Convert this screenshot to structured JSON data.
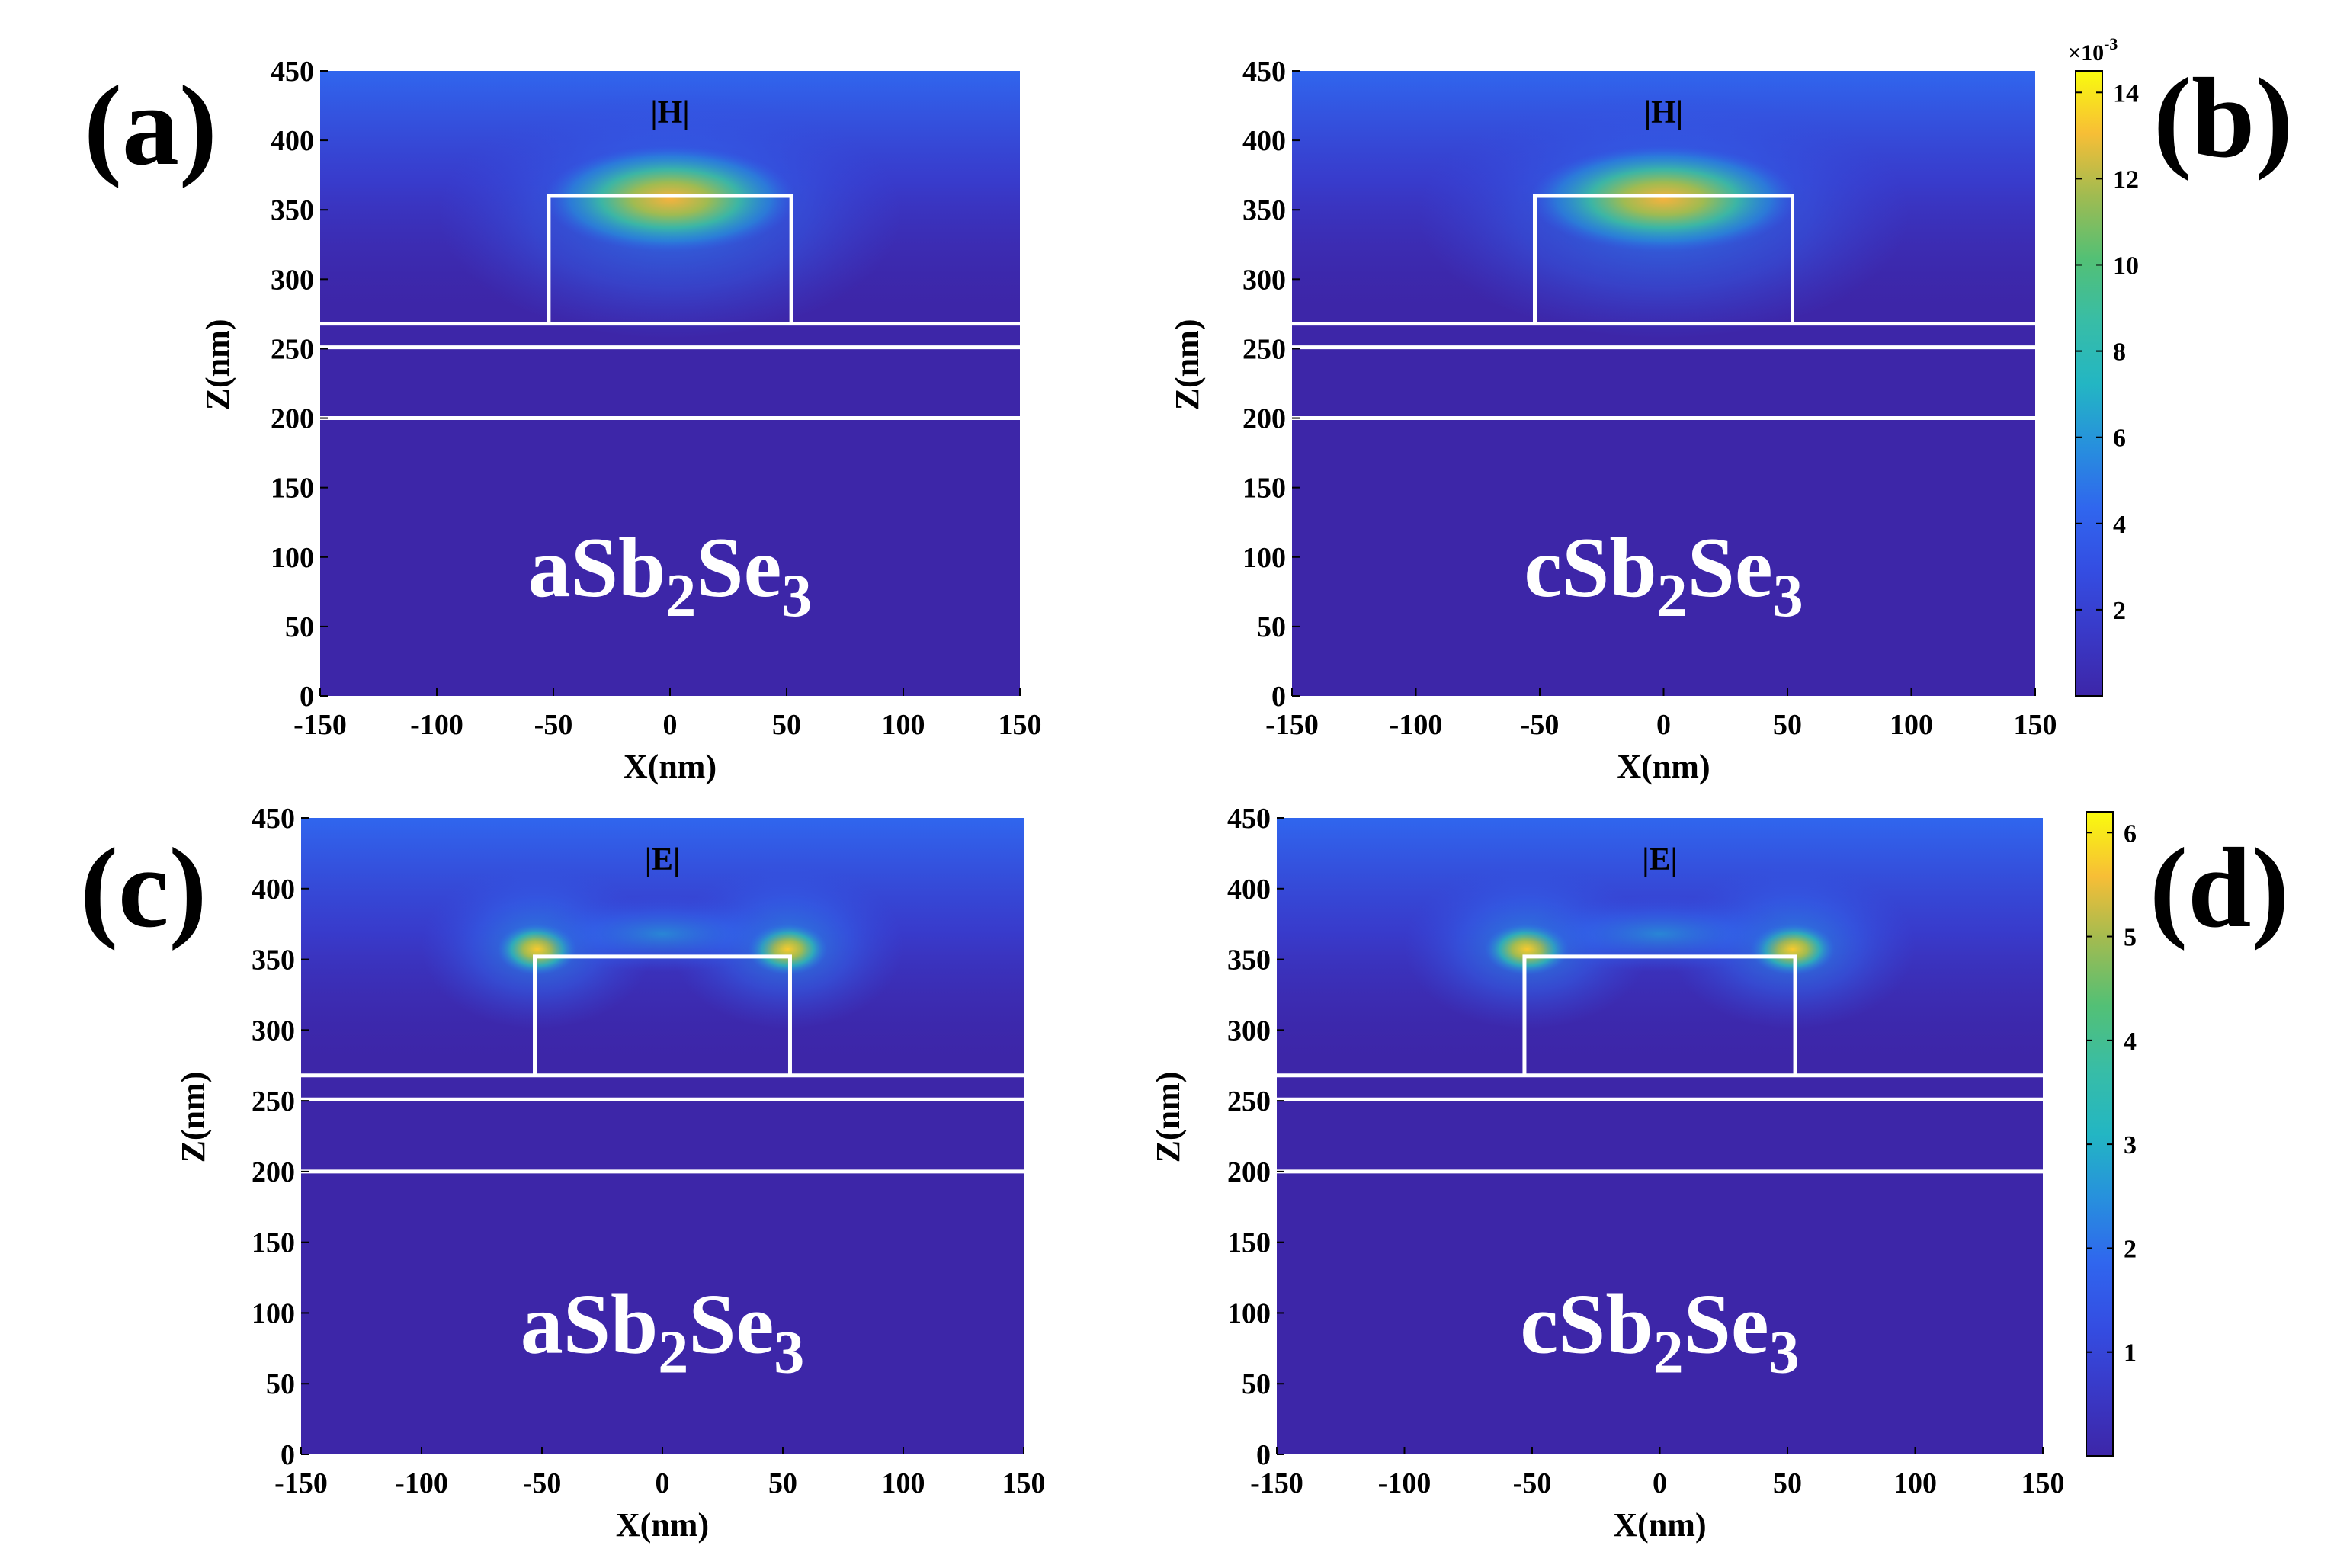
{
  "figure": {
    "panels": [
      {
        "letter": "(a)",
        "field": "|H|",
        "material": "aSb",
        "sub2": "2",
        "se": "Se",
        "sub3": "3"
      },
      {
        "letter": "(b)",
        "field": "|H|",
        "material": "cSb",
        "sub2": "2",
        "se": "Se",
        "sub3": "3"
      },
      {
        "letter": "(c)",
        "field": "|E|",
        "material": "aSb",
        "sub2": "2",
        "se": "Se",
        "sub3": "3"
      },
      {
        "letter": "(d)",
        "field": "|E|",
        "material": "cSb",
        "sub2": "2",
        "se": "Se",
        "sub3": "3"
      }
    ],
    "colorbars": [
      {
        "multiplier": "×10",
        "exponent": "-3",
        "ticks": [
          "14",
          "12",
          "10",
          "8",
          "6",
          "4",
          "2"
        ]
      },
      {
        "ticks": [
          "6",
          "5",
          "4",
          "3",
          "2",
          "1"
        ]
      }
    ],
    "colors": {
      "low": "#3d26a8",
      "mid_blue": "#2f6bf0",
      "cyan": "#1fb4c9",
      "green": "#5fc160",
      "orange": "#f7b23e",
      "yellow": "#f9fb0e",
      "outline": "#ffffff"
    }
  },
  "chart_data": [
    {
      "type": "heatmap",
      "title": "|H|",
      "panel": "(a)",
      "material": "aSb2Se3",
      "xlabel": "X(nm)",
      "ylabel": "Z(nm)",
      "xlim": [
        -150,
        150
      ],
      "ylim": [
        0,
        450
      ],
      "xticks": [
        "-150",
        "-100",
        "-50",
        "0",
        "50",
        "100",
        "150"
      ],
      "yticks": [
        "0",
        "50",
        "100",
        "150",
        "200",
        "250",
        "300",
        "350",
        "400",
        "450"
      ],
      "structure": {
        "rect_x": [
          -52,
          52
        ],
        "rect_z": [
          268,
          360
        ],
        "layer_lines_z": [
          268,
          251,
          200
        ]
      },
      "hotspots": [
        {
          "x": 0,
          "z": 358,
          "level": 0.9
        }
      ],
      "colorbar_max": 14.5,
      "colorbar_scale": "1e-3"
    },
    {
      "type": "heatmap",
      "title": "|H|",
      "panel": "(b)",
      "material": "cSb2Se3",
      "xlabel": "X(nm)",
      "ylabel": "Z(nm)",
      "xlim": [
        -150,
        150
      ],
      "ylim": [
        0,
        450
      ],
      "xticks": [
        "-150",
        "-100",
        "-50",
        "0",
        "50",
        "100",
        "150"
      ],
      "yticks": [
        "0",
        "50",
        "100",
        "150",
        "200",
        "250",
        "300",
        "350",
        "400",
        "450"
      ],
      "structure": {
        "rect_x": [
          -52,
          52
        ],
        "rect_z": [
          268,
          360
        ],
        "layer_lines_z": [
          268,
          251,
          200
        ]
      },
      "hotspots": [
        {
          "x": 0,
          "z": 358,
          "level": 0.9
        }
      ],
      "colorbar_max": 14.5,
      "colorbar_scale": "1e-3"
    },
    {
      "type": "heatmap",
      "title": "|E|",
      "panel": "(c)",
      "material": "aSb2Se3",
      "xlabel": "X(nm)",
      "ylabel": "Z(nm)",
      "xlim": [
        -150,
        150
      ],
      "ylim": [
        0,
        450
      ],
      "xticks": [
        "-150",
        "-100",
        "-50",
        "0",
        "50",
        "100",
        "150"
      ],
      "yticks": [
        "0",
        "50",
        "100",
        "150",
        "200",
        "250",
        "300",
        "350",
        "400",
        "450"
      ],
      "structure": {
        "rect_x": [
          -53,
          53
        ],
        "rect_z": [
          268,
          352
        ],
        "layer_lines_z": [
          268,
          251,
          200
        ]
      },
      "hotspots": [
        {
          "x": -52,
          "z": 355,
          "level": 0.85
        },
        {
          "x": 52,
          "z": 355,
          "level": 0.85
        }
      ],
      "colorbar_max": 6.2
    },
    {
      "type": "heatmap",
      "title": "|E|",
      "panel": "(d)",
      "material": "cSb2Se3",
      "xlabel": "X(nm)",
      "ylabel": "Z(nm)",
      "xlim": [
        -150,
        150
      ],
      "ylim": [
        0,
        450
      ],
      "xticks": [
        "-150",
        "-100",
        "-50",
        "0",
        "50",
        "100",
        "150"
      ],
      "yticks": [
        "0",
        "50",
        "100",
        "150",
        "200",
        "250",
        "300",
        "350",
        "400",
        "450"
      ],
      "structure": {
        "rect_x": [
          -53,
          53
        ],
        "rect_z": [
          268,
          352
        ],
        "layer_lines_z": [
          268,
          251,
          200
        ]
      },
      "hotspots": [
        {
          "x": -52,
          "z": 355,
          "level": 0.85
        },
        {
          "x": 52,
          "z": 355,
          "level": 0.85
        }
      ],
      "colorbar_max": 6.2
    }
  ]
}
